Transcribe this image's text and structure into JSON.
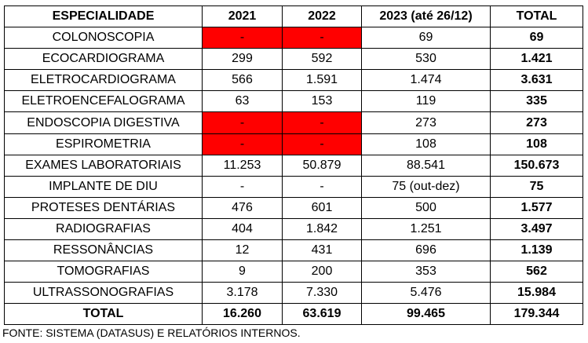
{
  "table": {
    "headers": [
      "ESPECIALIDADE",
      "2021",
      "2022",
      "2023 (até 26/12)",
      "TOTAL"
    ],
    "rows": [
      {
        "name": "COLONOSCOPIA",
        "y2021": "-",
        "y2022": "-",
        "y2023": "69",
        "total": "69",
        "missing_2021": true,
        "missing_2022": true
      },
      {
        "name": "ECOCARDIOGRAMA",
        "y2021": "299",
        "y2022": "592",
        "y2023": "530",
        "total": "1.421"
      },
      {
        "name": "ELETROCARDIOGRAMA",
        "y2021": "566",
        "y2022": "1.591",
        "y2023": "1.474",
        "total": "3.631"
      },
      {
        "name": "ELETROENCEFALOGRAMA",
        "y2021": "63",
        "y2022": "153",
        "y2023": "119",
        "total": "335"
      },
      {
        "name": "ENDOSCOPIA DIGESTIVA",
        "y2021": "-",
        "y2022": "-",
        "y2023": "273",
        "total": "273",
        "missing_2021": true,
        "missing_2022": true
      },
      {
        "name": "ESPIROMETRIA",
        "y2021": "-",
        "y2022": "-",
        "y2023": "108",
        "total": "108",
        "missing_2021": true,
        "missing_2022": true
      },
      {
        "name": "EXAMES LABORATORIAIS",
        "y2021": "11.253",
        "y2022": "50.879",
        "y2023": "88.541",
        "total": "150.673"
      },
      {
        "name": "IMPLANTE DE DIU",
        "y2021": "-",
        "y2022": "-",
        "y2023": "75 (out-dez)",
        "total": "75"
      },
      {
        "name": "PROTESES DENTÁRIAS",
        "y2021": "476",
        "y2022": "601",
        "y2023": "500",
        "total": "1.577"
      },
      {
        "name": "RADIOGRAFIAS",
        "y2021": "404",
        "y2022": "1.842",
        "y2023": "1.251",
        "total": "3.497"
      },
      {
        "name": "RESSONÂNCIAS",
        "y2021": "12",
        "y2022": "431",
        "y2023": "696",
        "total": "1.139"
      },
      {
        "name": "TOMOGRAFIAS",
        "y2021": "9",
        "y2022": "200",
        "y2023": "353",
        "total": "562"
      },
      {
        "name": "ULTRASSONOGRAFIAS",
        "y2021": "3.178",
        "y2022": "7.330",
        "y2023": "5.476",
        "total": "15.984"
      }
    ],
    "total_row": {
      "name": "TOTAL",
      "y2021": "16.260",
      "y2022": "63.619",
      "y2023": "99.465",
      "total": "179.344"
    },
    "highlight_color": "#ff0000"
  },
  "footnote": "FONTE: SISTEMA (DATASUS) E RELATÓRIOS INTERNOS."
}
